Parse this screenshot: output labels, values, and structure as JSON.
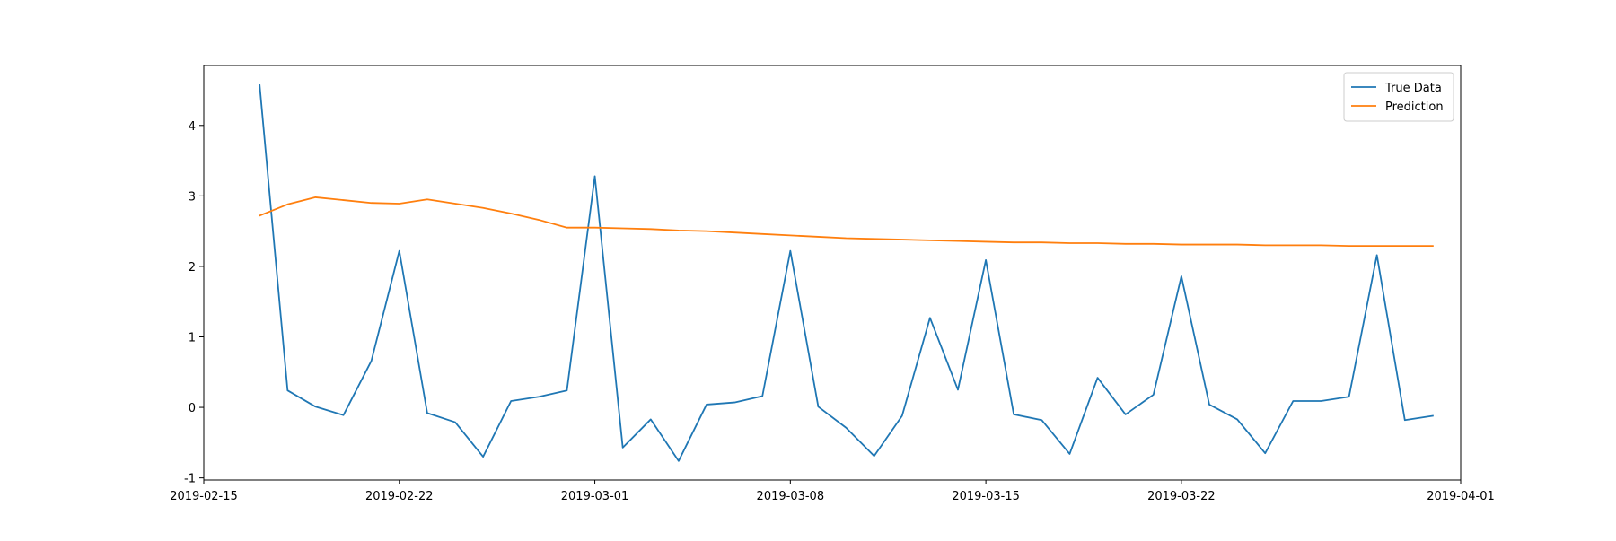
{
  "chart_data": {
    "type": "line",
    "title": "",
    "xlabel": "",
    "ylabel": "",
    "x_axis_type": "date",
    "xlim": [
      "2019-02-15",
      "2019-04-01"
    ],
    "ylim": [
      -1.03,
      4.85
    ],
    "x_ticks": [
      "2019-02-15",
      "2019-02-22",
      "2019-03-01",
      "2019-03-08",
      "2019-03-15",
      "2019-03-22",
      "2019-04-01"
    ],
    "y_ticks": [
      -1,
      0,
      1,
      2,
      3,
      4
    ],
    "grid": false,
    "legend_position": "top-right",
    "x": [
      "2019-02-17",
      "2019-02-18",
      "2019-02-19",
      "2019-02-20",
      "2019-02-21",
      "2019-02-22",
      "2019-02-23",
      "2019-02-24",
      "2019-02-25",
      "2019-02-26",
      "2019-02-27",
      "2019-02-28",
      "2019-03-01",
      "2019-03-02",
      "2019-03-03",
      "2019-03-04",
      "2019-03-05",
      "2019-03-06",
      "2019-03-07",
      "2019-03-08",
      "2019-03-09",
      "2019-03-10",
      "2019-03-11",
      "2019-03-12",
      "2019-03-13",
      "2019-03-14",
      "2019-03-15",
      "2019-03-16",
      "2019-03-17",
      "2019-03-18",
      "2019-03-19",
      "2019-03-20",
      "2019-03-21",
      "2019-03-22",
      "2019-03-23",
      "2019-03-24",
      "2019-03-25",
      "2019-03-26",
      "2019-03-27",
      "2019-03-28",
      "2019-03-29",
      "2019-03-30",
      "2019-03-31"
    ],
    "series": [
      {
        "name": "True Data",
        "color": "#1f77b4",
        "values": [
          4.57,
          0.24,
          0.01,
          -0.11,
          0.66,
          2.22,
          -0.08,
          -0.21,
          -0.7,
          0.09,
          0.15,
          0.24,
          3.28,
          -0.57,
          -0.17,
          -0.76,
          0.04,
          0.07,
          0.16,
          2.22,
          0.01,
          -0.29,
          -0.69,
          -0.12,
          1.27,
          0.25,
          2.09,
          -0.1,
          -0.18,
          -0.66,
          0.42,
          -0.1,
          0.18,
          1.86,
          0.04,
          -0.17,
          -0.65,
          0.09,
          0.09,
          0.15,
          2.16,
          -0.18,
          -0.12
        ]
      },
      {
        "name": "Prediction",
        "color": "#ff7f0e",
        "values": [
          2.72,
          2.88,
          2.98,
          2.94,
          2.9,
          2.89,
          2.95,
          2.89,
          2.83,
          2.75,
          2.66,
          2.55,
          2.55,
          2.54,
          2.53,
          2.51,
          2.5,
          2.48,
          2.46,
          2.44,
          2.42,
          2.4,
          2.39,
          2.38,
          2.37,
          2.36,
          2.35,
          2.34,
          2.34,
          2.33,
          2.33,
          2.32,
          2.32,
          2.31,
          2.31,
          2.31,
          2.3,
          2.3,
          2.3,
          2.29,
          2.29,
          2.29,
          2.29
        ]
      }
    ]
  }
}
